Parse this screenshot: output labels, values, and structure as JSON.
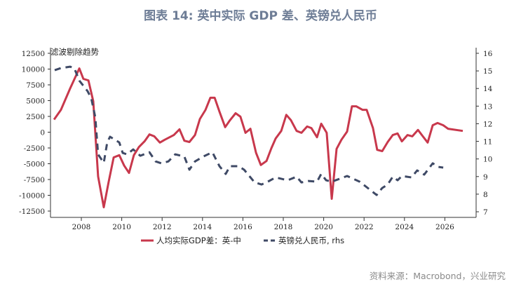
{
  "title": "图表 14: 英中实际 GDP 差、英镑兑人民币",
  "source": "资料来源：Macrobond，兴业研究",
  "chart_data": {
    "type": "line",
    "title": "图表 14: 英中实际 GDP 差、英镑兑人民币",
    "annotation": "滤波剔除趋势",
    "xlim": [
      2006.5,
      2027.6
    ],
    "x_ticks": [
      "2008",
      "2010",
      "2012",
      "2014",
      "2016",
      "2018",
      "2020",
      "2022",
      "2024",
      "2026"
    ],
    "ylim_left": [
      -12500,
      12500
    ],
    "y_ticks_left": [
      "12500",
      "10000",
      "7500",
      "5000",
      "2500",
      "0",
      "-2500",
      "-5000",
      "-7500",
      "-10000",
      "-12500"
    ],
    "ylim_right": [
      7,
      16
    ],
    "y_ticks_right": [
      "16",
      "15",
      "14",
      "13",
      "12",
      "11",
      "10",
      "9",
      "8",
      "7"
    ],
    "grid": false,
    "legend_position": "bottom-left",
    "series": [
      {
        "name": "人均实际GDP差：英-中",
        "axis": "left",
        "color": "#c8384c",
        "style": "solid",
        "x": [
          2006.65,
          2006.99,
          2007.44,
          2007.9,
          2008.1,
          2008.35,
          2008.59,
          2008.83,
          2009.11,
          2009.35,
          2009.6,
          2009.88,
          2010.12,
          2010.36,
          2010.6,
          2010.85,
          2011.13,
          2011.37,
          2011.61,
          2011.89,
          2012.13,
          2012.58,
          2012.86,
          2013.1,
          2013.35,
          2013.63,
          2013.87,
          2014.15,
          2014.39,
          2014.6,
          2014.84,
          2015.12,
          2015.36,
          2015.64,
          2015.88,
          2016.13,
          2016.37,
          2016.65,
          2016.89,
          2017.17,
          2017.41,
          2017.62,
          2017.9,
          2018.15,
          2018.38,
          2018.66,
          2018.9,
          2019.18,
          2019.39,
          2019.67,
          2019.88,
          2020.15,
          2020.4,
          2020.64,
          2020.88,
          2021.16,
          2021.4,
          2021.61,
          2021.92,
          2022.13,
          2022.44,
          2022.65,
          2022.9,
          2023.17,
          2023.42,
          2023.66,
          2023.87,
          2024.15,
          2024.39,
          2024.67,
          2024.91,
          2025.15,
          2025.4,
          2025.64,
          2025.92,
          2026.16,
          2026.89
        ],
        "values": [
          2000,
          3550,
          6900,
          10100,
          8450,
          8200,
          4900,
          -7000,
          -11900,
          -7900,
          -4000,
          -3650,
          -5300,
          -6450,
          -3650,
          -2350,
          -1450,
          -350,
          -650,
          -1650,
          -1200,
          -450,
          450,
          -1350,
          -1550,
          -450,
          2100,
          3550,
          5450,
          5450,
          3250,
          800,
          1900,
          3000,
          2450,
          -100,
          550,
          -3250,
          -5200,
          -4550,
          -2550,
          -1000,
          200,
          2750,
          1900,
          200,
          -100,
          900,
          650,
          -800,
          1350,
          -100,
          -10550,
          -2650,
          -1200,
          100,
          4100,
          4100,
          3550,
          3550,
          650,
          -2800,
          -3000,
          -1550,
          -450,
          -200,
          -1450,
          -450,
          -650,
          350,
          -650,
          -1650,
          1100,
          1450,
          1100,
          550,
          200
        ]
      },
      {
        "name": "英镑兑人民币, rhs",
        "axis": "right",
        "color": "#3f4a66",
        "style": "dashed",
        "x": [
          2006.68,
          2006.99,
          2007.44,
          2007.65,
          2007.9,
          2008.31,
          2008.49,
          2008.69,
          2008.83,
          2009.11,
          2009.28,
          2009.42,
          2009.88,
          2010.05,
          2010.26,
          2010.57,
          2010.92,
          2011.37,
          2011.68,
          2011.96,
          2012.31,
          2012.65,
          2013.1,
          2013.35,
          2013.63,
          2014.04,
          2014.49,
          2014.84,
          2015.15,
          2015.36,
          2015.78,
          2016.06,
          2016.58,
          2016.92,
          2017.17,
          2017.62,
          2018.21,
          2018.66,
          2018.9,
          2019.25,
          2019.67,
          2019.88,
          2020.12,
          2020.4,
          2021.16,
          2021.78,
          2022.27,
          2022.62,
          2022.9,
          2023.17,
          2023.42,
          2023.66,
          2023.87,
          2024.35,
          2024.63,
          2024.98,
          2025.4,
          2025.67,
          2025.92
        ],
        "values": [
          15.04,
          15.16,
          15.24,
          15.16,
          14.45,
          13.85,
          13.45,
          12.37,
          10.26,
          9.78,
          10.94,
          11.26,
          10.94,
          10.34,
          10.26,
          10.54,
          10.18,
          10.38,
          9.86,
          9.75,
          9.86,
          10.26,
          10.14,
          9.39,
          9.86,
          10.14,
          10.38,
          9.59,
          9.15,
          9.59,
          9.59,
          9.39,
          8.67,
          8.55,
          8.67,
          8.95,
          8.79,
          8.99,
          8.67,
          8.75,
          8.71,
          9.15,
          8.79,
          8.71,
          9.03,
          8.71,
          8.27,
          7.95,
          8.35,
          8.55,
          8.99,
          8.79,
          9.03,
          8.95,
          9.35,
          9.11,
          9.75,
          9.55,
          9.51
        ]
      }
    ]
  }
}
